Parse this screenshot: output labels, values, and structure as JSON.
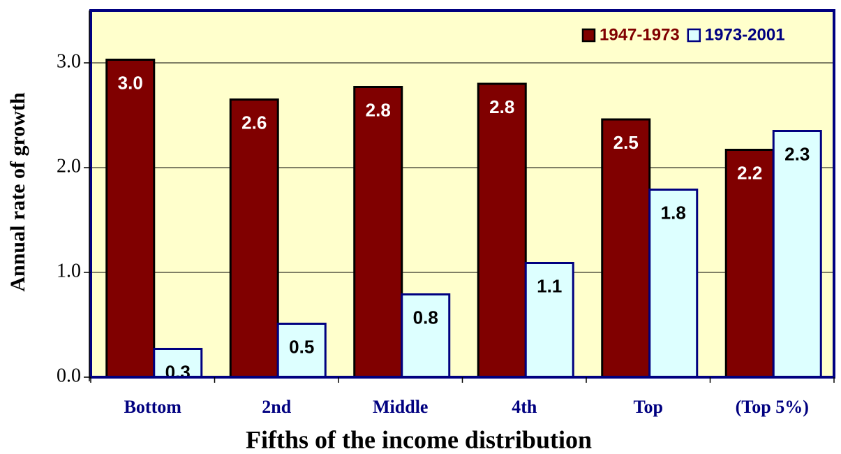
{
  "chart_data": {
    "type": "bar",
    "x_label": "Fifths of the income distribution",
    "y_label": "Annual rate of growth",
    "categories": [
      "Bottom",
      "2nd",
      "Middle",
      "4th",
      "Top",
      "(Top 5%)"
    ],
    "series": [
      {
        "name": "1947-1973",
        "color": "#800000",
        "border": "#000000",
        "values": [
          3.03,
          2.65,
          2.77,
          2.8,
          2.46,
          2.17
        ],
        "value_labels": [
          "3.0",
          "2.6",
          "2.8",
          "2.8",
          "2.5",
          "2.2"
        ]
      },
      {
        "name": "1973-2001",
        "color": "#ddffff",
        "border": "#000080",
        "values": [
          0.27,
          0.51,
          0.79,
          1.09,
          1.79,
          2.35
        ],
        "value_labels": [
          "0.3",
          "0.5",
          "0.8",
          "1.1",
          "1.8",
          "2.3"
        ]
      }
    ],
    "ylim": [
      0,
      3.5
    ],
    "yticks": [
      {
        "value": 0,
        "label": "0.0"
      },
      {
        "value": 1,
        "label": "1.0"
      },
      {
        "value": 2,
        "label": "2.0"
      },
      {
        "value": 3,
        "label": "3.0"
      }
    ],
    "grid": true,
    "legend": "top-right"
  }
}
